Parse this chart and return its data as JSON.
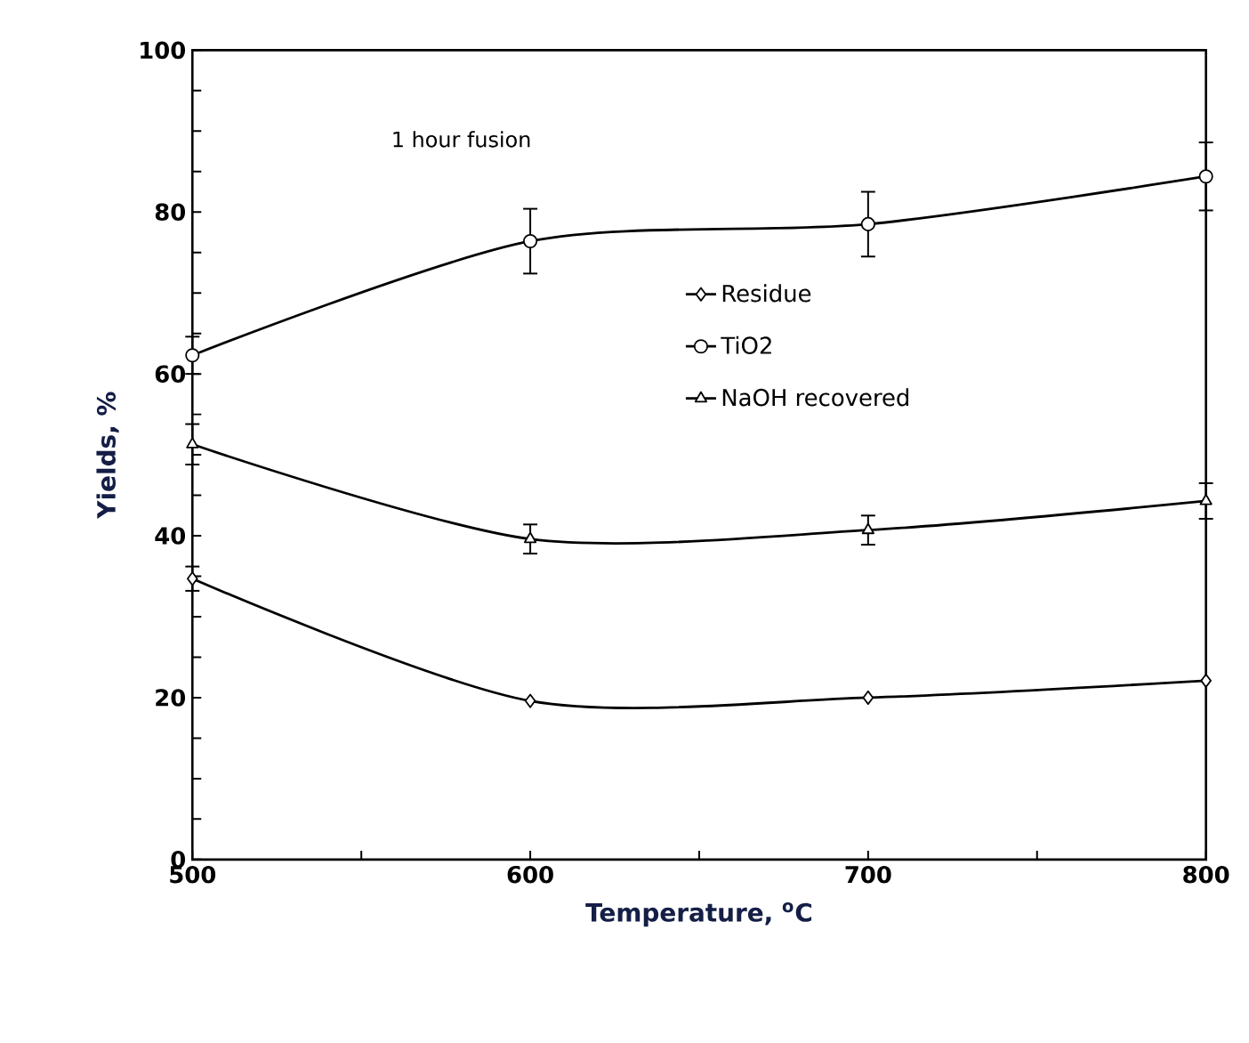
{
  "chart_data": {
    "type": "line",
    "xlabel": "Temperature, $^{o}$C",
    "ylabel": "Yields, %",
    "annotations": [
      "1 hour fusion"
    ],
    "x": [
      500,
      600,
      700,
      800
    ],
    "xlim": [
      500,
      800
    ],
    "xticks": [
      500,
      {
        "value": 550,
        "label": null
      },
      600,
      {
        "value": 650,
        "label": null
      },
      700,
      {
        "value": 750,
        "label": null
      },
      800
    ],
    "ylim": [
      0,
      100
    ],
    "yticks": [
      0,
      {
        "value": 5,
        "label": null
      },
      {
        "value": 10,
        "label": null
      },
      {
        "value": 15,
        "label": null
      },
      20,
      {
        "value": 25,
        "label": null
      },
      {
        "value": 30,
        "label": null
      },
      {
        "value": 35,
        "label": null
      },
      40,
      {
        "value": 45,
        "label": null
      },
      {
        "value": 50,
        "label": null
      },
      {
        "value": 55,
        "label": null
      },
      60,
      {
        "value": 65,
        "label": null
      },
      {
        "value": 70,
        "label": null
      },
      {
        "value": 75,
        "label": null
      },
      80,
      {
        "value": 85,
        "label": null
      },
      {
        "value": 90,
        "label": null
      },
      {
        "value": 95,
        "label": null
      },
      100
    ],
    "grid": false,
    "legend": "right",
    "line_style": "solid",
    "series": [
      {
        "name": "Residue",
        "color": "#000000",
        "marker": "diamond",
        "values": [
          34.7,
          19.6,
          20.0,
          22.1
        ],
        "errors": [
          1.5,
          null,
          null,
          null
        ]
      },
      {
        "name": "TiO2",
        "color": "#000000",
        "marker": "circle",
        "values": [
          62.3,
          76.4,
          78.5,
          84.4
        ],
        "errors": [
          2.3,
          4.0,
          4.0,
          4.2
        ]
      },
      {
        "name": "NaOH recovered",
        "color": "#000000",
        "marker": "triangle",
        "values": [
          51.3,
          39.6,
          40.7,
          44.3
        ],
        "errors": [
          2.5,
          1.8,
          1.8,
          2.2
        ]
      }
    ]
  }
}
